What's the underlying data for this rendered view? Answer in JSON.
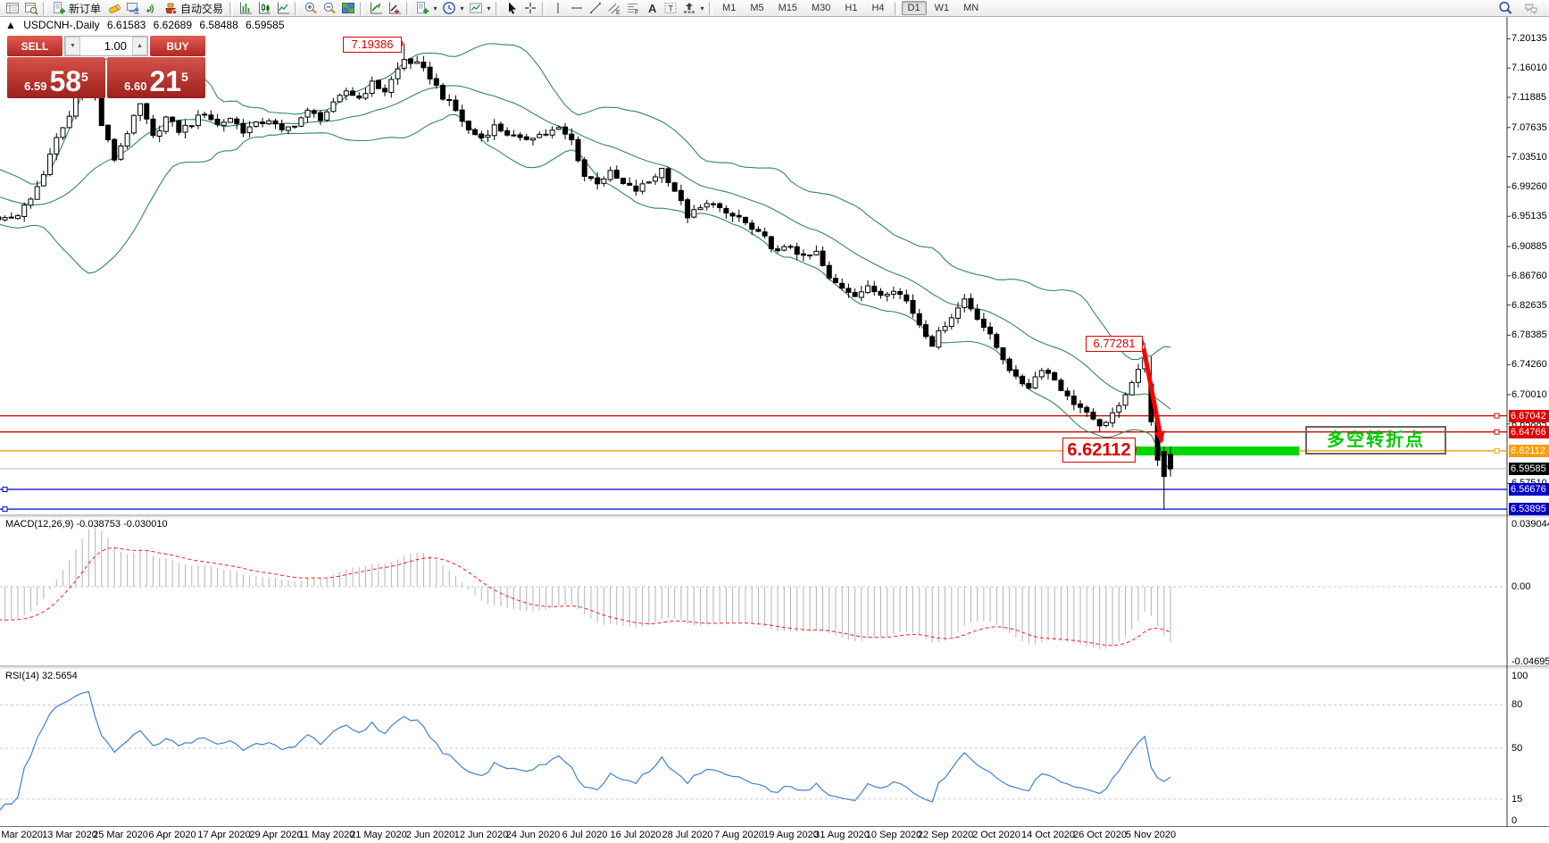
{
  "toolbar": {
    "items": [
      {
        "k": "icon",
        "n": "market-watch-icon",
        "g": "mw"
      },
      {
        "k": "icon",
        "n": "data-window-icon",
        "g": "dw"
      },
      {
        "k": "sep"
      },
      {
        "k": "icon",
        "n": "new-order-icon",
        "g": "neworder"
      },
      {
        "k": "label",
        "n": "new-order-label",
        "t": "新订单"
      },
      {
        "k": "icon",
        "n": "history-center-icon",
        "g": "cyl"
      },
      {
        "k": "icon",
        "n": "terminal-icon",
        "g": "term"
      },
      {
        "k": "icon",
        "n": "signals-icon",
        "g": "sig"
      },
      {
        "k": "icon",
        "n": "autotrading-icon",
        "g": "auto"
      },
      {
        "k": "label",
        "n": "autotrading-label",
        "t": "自动交易"
      },
      {
        "k": "sep"
      },
      {
        "k": "icon",
        "n": "bar-chart-icon",
        "g": "bars"
      },
      {
        "k": "icon",
        "n": "candle-chart-icon",
        "g": "candles"
      },
      {
        "k": "icon",
        "n": "line-chart-icon",
        "g": "linechart"
      },
      {
        "k": "sep"
      },
      {
        "k": "icon",
        "n": "zoom-in-icon",
        "g": "zin"
      },
      {
        "k": "icon",
        "n": "zoom-out-icon",
        "g": "zout"
      },
      {
        "k": "icon",
        "n": "tile-windows-icon",
        "g": "tile"
      },
      {
        "k": "sep"
      },
      {
        "k": "icon",
        "n": "indicators-icon",
        "g": "ind"
      },
      {
        "k": "icon",
        "n": "add-indicator-icon",
        "g": "ind2"
      },
      {
        "k": "sep"
      },
      {
        "k": "icon",
        "n": "new-chart-icon",
        "g": "neworder"
      },
      {
        "k": "caret",
        "n": "new-chart-caret"
      },
      {
        "k": "icon",
        "n": "periods-icon",
        "g": "clock"
      },
      {
        "k": "caret",
        "n": "periods-caret"
      },
      {
        "k": "icon",
        "n": "templates-icon",
        "g": "tmpl"
      },
      {
        "k": "caret",
        "n": "templates-caret"
      },
      {
        "k": "sep"
      },
      {
        "k": "icon",
        "n": "cursor-icon",
        "g": "cursor"
      },
      {
        "k": "icon",
        "n": "crosshair-icon",
        "g": "cross"
      },
      {
        "k": "sep"
      },
      {
        "k": "icon",
        "n": "vertical-line-icon",
        "g": "vline"
      },
      {
        "k": "icon",
        "n": "horizontal-line-icon",
        "g": "hline"
      },
      {
        "k": "icon",
        "n": "trendline-icon",
        "g": "tline"
      },
      {
        "k": "icon",
        "n": "equidistant-channel-icon",
        "g": "chan"
      },
      {
        "k": "icon",
        "n": "fibonacci-icon",
        "g": "fibo"
      },
      {
        "k": "icon",
        "n": "text-icon",
        "g": "textA"
      },
      {
        "k": "icon",
        "n": "text-label-icon",
        "g": "textT"
      },
      {
        "k": "icon",
        "n": "arrows-icon",
        "g": "arrows"
      },
      {
        "k": "caret",
        "n": "arrows-caret"
      },
      {
        "k": "sep"
      }
    ],
    "timeframes": [
      "M1",
      "M5",
      "M15",
      "M30",
      "H1",
      "H4",
      "D1",
      "W1",
      "MN"
    ],
    "active_timeframe": "D1",
    "right_icons": [
      {
        "n": "search-icon",
        "g": "search"
      },
      {
        "n": "chat-icon",
        "g": "chat"
      }
    ]
  },
  "chart_header": {
    "collapse": "▲",
    "symbol_period": "USDCNH-,Daily",
    "open": "6.61583",
    "high": "6.62689",
    "low": "6.58488",
    "close": "6.59585"
  },
  "trade_panel": {
    "sell_label": "SELL",
    "buy_label": "BUY",
    "volume": "1.00",
    "sell_small": "6.59",
    "sell_big": "58",
    "sell_sup": "5",
    "buy_small": "6.60",
    "buy_big": "21",
    "buy_sup": "5",
    "down_arrow": "▼",
    "up_arrow": "▲"
  },
  "price_axis": {
    "ticks": [
      "7.20135",
      "7.16010",
      "7.11885",
      "7.07635",
      "7.03510",
      "6.99260",
      "6.95135",
      "6.90885",
      "6.86760",
      "6.82635",
      "6.78385",
      "6.74260",
      "6.70010",
      "6.65885",
      "6.57510"
    ],
    "tags": [
      {
        "value": "6.67042",
        "bg": "#e00000"
      },
      {
        "value": "6.64766",
        "bg": "#e00000"
      },
      {
        "value": "6.62112",
        "bg": "#ff9d00"
      },
      {
        "value": "6.59585",
        "bg": "#000000"
      },
      {
        "value": "6.56676",
        "bg": "#0000c8"
      },
      {
        "value": "6.53895",
        "bg": "#0000c8"
      }
    ]
  },
  "annotations": {
    "high_label": "7.19386",
    "swing_label": "6.77281",
    "level_label": "6.62112",
    "cn_note": "多空转折点"
  },
  "indicator_macd": {
    "title": "MACD(12,26,9)",
    "value_main": "-0.038753",
    "value_signal": "-0.030010",
    "axis": [
      "0.039044",
      "0.00",
      "-0.046959"
    ]
  },
  "indicator_rsi": {
    "title": "RSI(14)",
    "value": "32.5654",
    "axis": [
      "100",
      "80",
      "50",
      "15",
      "0"
    ],
    "levels": [
      80,
      50,
      15
    ]
  },
  "time_axis": [
    "3 Mar 2020",
    "13 Mar 2020",
    "25 Mar 2020",
    "6 Apr 2020",
    "17 Apr 2020",
    "29 Apr 2020",
    "11 May 2020",
    "21 May 2020",
    "2 Jun 2020",
    "12 Jun 2020",
    "24 Jun 2020",
    "6 Jul 2020",
    "16 Jul 2020",
    "28 Jul 2020",
    "7 Aug 2020",
    "19 Aug 2020",
    "31 Aug 2020",
    "10 Sep 2020",
    "22 Sep 2020",
    "2 Oct 2020",
    "14 Oct 2020",
    "26 Oct 2020",
    "5 Nov 2020"
  ],
  "chart_data": {
    "type": "candlestick",
    "symbol": "USDCNH-",
    "timeframe": "Daily",
    "bollinger": {
      "period": 20,
      "deviation": 2
    },
    "anchors": [
      [
        -3,
        6.945
      ],
      [
        0,
        6.955
      ],
      [
        2,
        6.975
      ],
      [
        4,
        7.012
      ],
      [
        6,
        7.06
      ],
      [
        8,
        7.092
      ],
      [
        10,
        7.148
      ],
      [
        11,
        7.158
      ],
      [
        13,
        7.08
      ],
      [
        15,
        7.032
      ],
      [
        17,
        7.07
      ],
      [
        19,
        7.108
      ],
      [
        21,
        7.062
      ],
      [
        23,
        7.09
      ],
      [
        25,
        7.072
      ],
      [
        27,
        7.082
      ],
      [
        29,
        7.098
      ],
      [
        31,
        7.08
      ],
      [
        33,
        7.09
      ],
      [
        35,
        7.072
      ],
      [
        37,
        7.08
      ],
      [
        39,
        7.088
      ],
      [
        41,
        7.07
      ],
      [
        43,
        7.082
      ],
      [
        45,
        7.098
      ],
      [
        47,
        7.09
      ],
      [
        49,
        7.108
      ],
      [
        51,
        7.128
      ],
      [
        53,
        7.118
      ],
      [
        55,
        7.138
      ],
      [
        57,
        7.128
      ],
      [
        59,
        7.158
      ],
      [
        60,
        7.172
      ],
      [
        62,
        7.165
      ],
      [
        64,
        7.148
      ],
      [
        66,
        7.12
      ],
      [
        68,
        7.1
      ],
      [
        70,
        7.072
      ],
      [
        72,
        7.062
      ],
      [
        74,
        7.078
      ],
      [
        76,
        7.068
      ],
      [
        78,
        7.058
      ],
      [
        80,
        7.065
      ],
      [
        82,
        7.068
      ],
      [
        84,
        7.074
      ],
      [
        86,
        7.058
      ],
      [
        88,
        7.008
      ],
      [
        90,
        7.0
      ],
      [
        92,
        7.012
      ],
      [
        94,
        6.996
      ],
      [
        96,
        6.988
      ],
      [
        98,
        7.0
      ],
      [
        100,
        7.018
      ],
      [
        102,
        6.988
      ],
      [
        104,
        6.952
      ],
      [
        106,
        6.962
      ],
      [
        108,
        6.972
      ],
      [
        110,
        6.952
      ],
      [
        112,
        6.95
      ],
      [
        114,
        6.932
      ],
      [
        116,
        6.92
      ],
      [
        118,
        6.9
      ],
      [
        120,
        6.91
      ],
      [
        122,
        6.892
      ],
      [
        124,
        6.9
      ],
      [
        126,
        6.862
      ],
      [
        128,
        6.852
      ],
      [
        130,
        6.842
      ],
      [
        132,
        6.85
      ],
      [
        134,
        6.842
      ],
      [
        136,
        6.85
      ],
      [
        138,
        6.832
      ],
      [
        140,
        6.8
      ],
      [
        142,
        6.772
      ],
      [
        144,
        6.8
      ],
      [
        146,
        6.822
      ],
      [
        147,
        6.835
      ],
      [
        149,
        6.81
      ],
      [
        151,
        6.782
      ],
      [
        153,
        6.752
      ],
      [
        155,
        6.722
      ],
      [
        157,
        6.712
      ],
      [
        159,
        6.738
      ],
      [
        161,
        6.722
      ],
      [
        163,
        6.696
      ],
      [
        165,
        6.682
      ],
      [
        167,
        6.662
      ],
      [
        169,
        6.657
      ],
      [
        171,
        6.688
      ],
      [
        173,
        6.718
      ],
      [
        175,
        6.752
      ],
      [
        176,
        6.662
      ],
      [
        177,
        6.608
      ],
      [
        178,
        6.585
      ],
      [
        179,
        6.59585
      ]
    ],
    "overrides": {
      "60": {
        "h": 7.19386
      },
      "175": {
        "h": 6.77281
      },
      "176": {
        "o": 6.715,
        "c": 6.662
      },
      "177": {
        "c": 6.608
      },
      "178": {
        "o": 6.62,
        "h": 6.627,
        "l": 6.53895,
        "c": 6.585
      },
      "179": {
        "o": 6.61583,
        "h": 6.62689,
        "l": 6.58488,
        "c": 6.59585
      }
    },
    "key_levels": [
      {
        "price": 6.67042,
        "color": "#cc0000",
        "handle": "right"
      },
      {
        "price": 6.64766,
        "color": "#cc0000",
        "handle": "right"
      },
      {
        "price": 6.62112,
        "color": "#ff9d00",
        "handle": "right"
      },
      {
        "price": 6.59585,
        "color": "#bdbdbd",
        "handle": "none"
      },
      {
        "price": 6.56676,
        "color": "#0000c8",
        "handle": "left"
      },
      {
        "price": 6.53895,
        "color": "#0000c8",
        "handle": "left"
      }
    ],
    "marked_high": 7.19386,
    "marked_swing_high": 6.77281,
    "marked_level": 6.62112,
    "current_price": 6.59585
  }
}
